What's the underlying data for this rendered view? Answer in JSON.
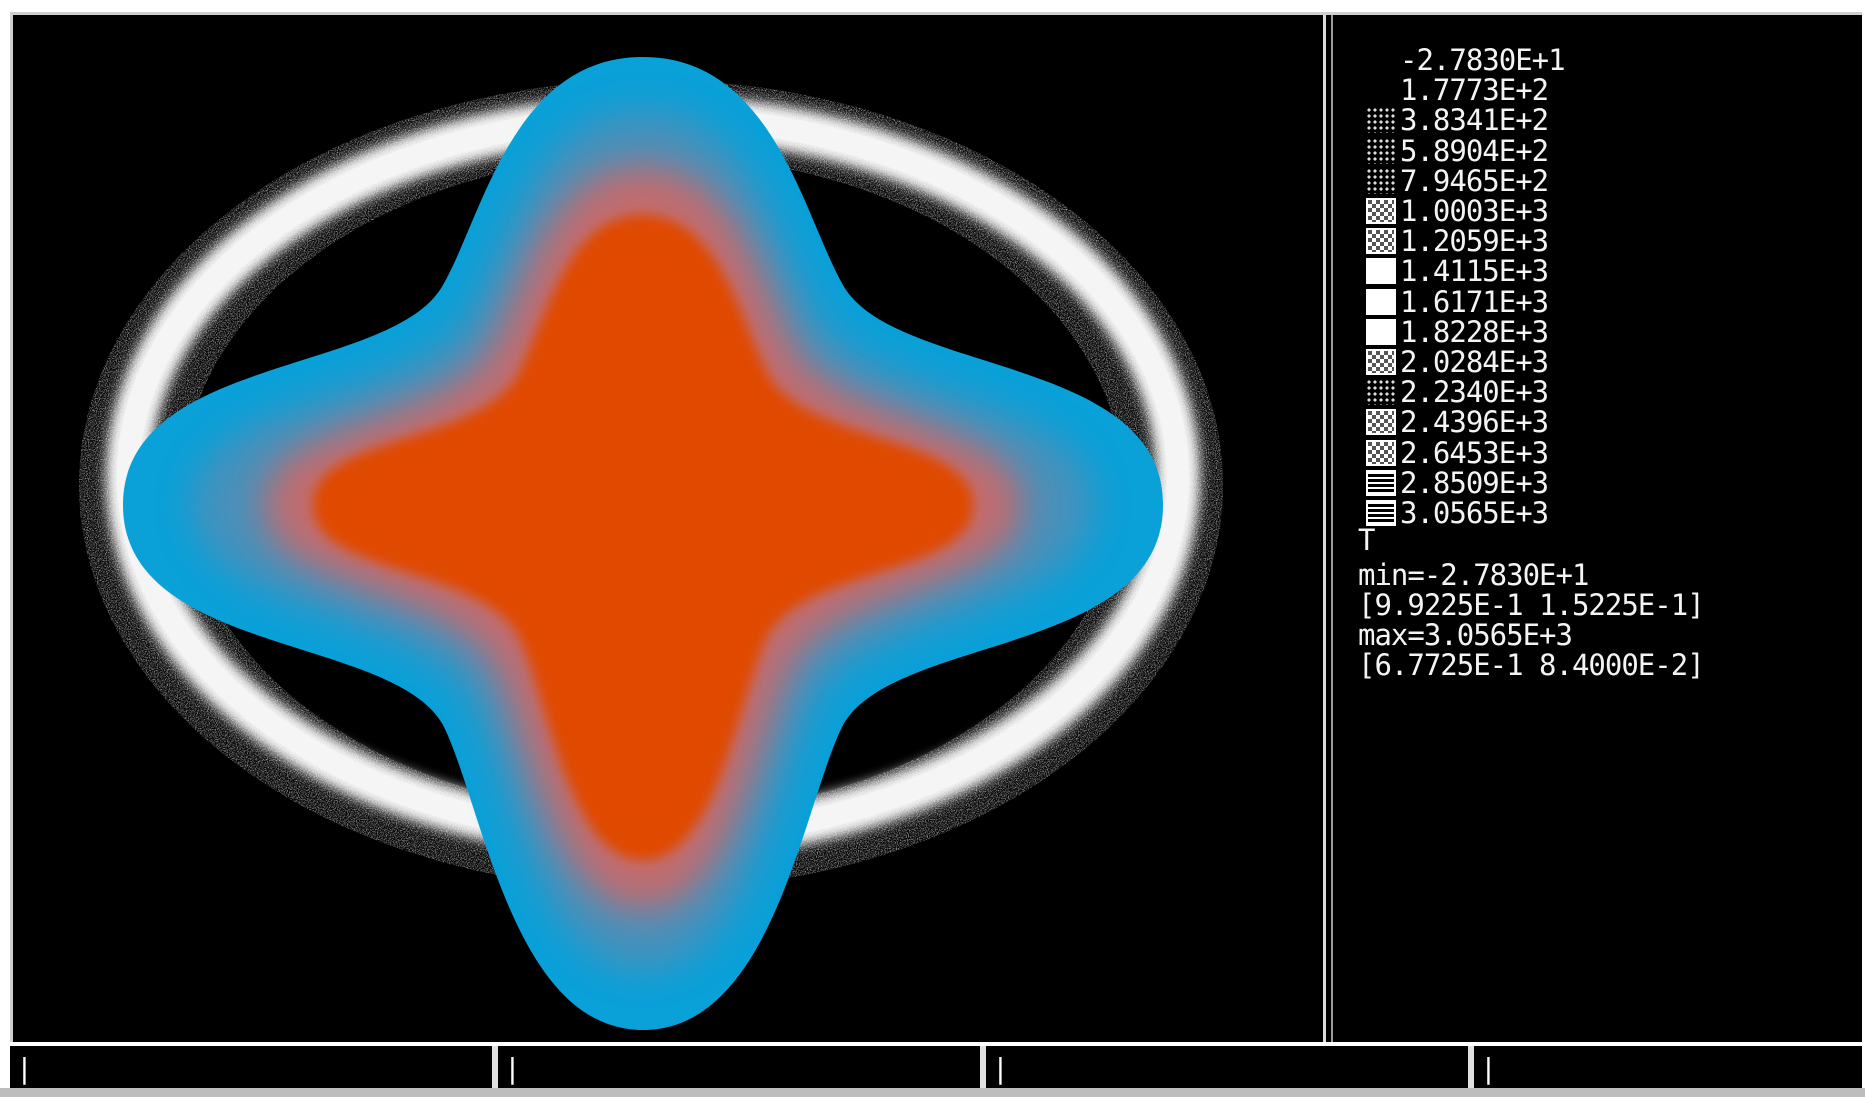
{
  "legend": {
    "variable": "T",
    "levels": [
      "-2.7830E+1",
      "1.7773E+2",
      "3.8341E+2",
      "5.8904E+2",
      "7.9465E+2",
      "1.0003E+3",
      "1.2059E+3",
      "1.4115E+3",
      "1.6171E+3",
      "1.8228E+3",
      "2.0284E+3",
      "2.2340E+3",
      "2.4396E+3",
      "2.6453E+3",
      "2.8509E+3",
      "3.0565E+3"
    ],
    "min_label": "min=-2.7830E+1",
    "min_coords": "[9.9225E-1 1.5225E-1]",
    "max_label": "max=3.0565E+3",
    "max_coords": "[6.7725E-1 8.4000E-2]"
  },
  "status_bar": {
    "cells": [
      "|",
      "|",
      "|",
      "|"
    ]
  },
  "colors": {
    "background": "#000000",
    "outer_shape": "#0aa0d8",
    "inner_shape": "#e04a00",
    "ring": "#ffffff"
  }
}
